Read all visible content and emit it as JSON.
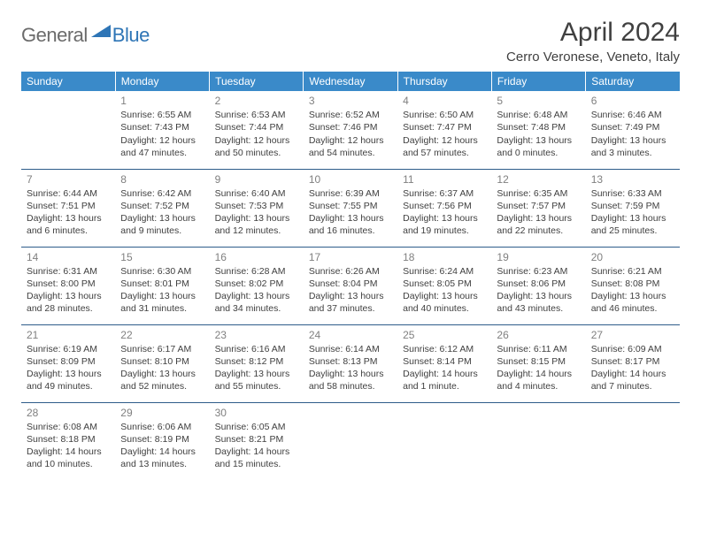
{
  "logo": {
    "general": "General",
    "blue": "Blue"
  },
  "title": "April 2024",
  "location": "Cerro Veronese, Veneto, Italy",
  "colors": {
    "header_bg": "#3a8ac9",
    "header_fg": "#ffffff",
    "border": "#2e5c8a",
    "text": "#404040",
    "daynum": "#808080",
    "logo_gray": "#6b6b6b",
    "logo_blue": "#2e75b6"
  },
  "weekdays": [
    "Sunday",
    "Monday",
    "Tuesday",
    "Wednesday",
    "Thursday",
    "Friday",
    "Saturday"
  ],
  "weeks": [
    [
      {
        "day": "",
        "sunrise": "",
        "sunset": "",
        "daylight1": "",
        "daylight2": ""
      },
      {
        "day": "1",
        "sunrise": "Sunrise: 6:55 AM",
        "sunset": "Sunset: 7:43 PM",
        "daylight1": "Daylight: 12 hours",
        "daylight2": "and 47 minutes."
      },
      {
        "day": "2",
        "sunrise": "Sunrise: 6:53 AM",
        "sunset": "Sunset: 7:44 PM",
        "daylight1": "Daylight: 12 hours",
        "daylight2": "and 50 minutes."
      },
      {
        "day": "3",
        "sunrise": "Sunrise: 6:52 AM",
        "sunset": "Sunset: 7:46 PM",
        "daylight1": "Daylight: 12 hours",
        "daylight2": "and 54 minutes."
      },
      {
        "day": "4",
        "sunrise": "Sunrise: 6:50 AM",
        "sunset": "Sunset: 7:47 PM",
        "daylight1": "Daylight: 12 hours",
        "daylight2": "and 57 minutes."
      },
      {
        "day": "5",
        "sunrise": "Sunrise: 6:48 AM",
        "sunset": "Sunset: 7:48 PM",
        "daylight1": "Daylight: 13 hours",
        "daylight2": "and 0 minutes."
      },
      {
        "day": "6",
        "sunrise": "Sunrise: 6:46 AM",
        "sunset": "Sunset: 7:49 PM",
        "daylight1": "Daylight: 13 hours",
        "daylight2": "and 3 minutes."
      }
    ],
    [
      {
        "day": "7",
        "sunrise": "Sunrise: 6:44 AM",
        "sunset": "Sunset: 7:51 PM",
        "daylight1": "Daylight: 13 hours",
        "daylight2": "and 6 minutes."
      },
      {
        "day": "8",
        "sunrise": "Sunrise: 6:42 AM",
        "sunset": "Sunset: 7:52 PM",
        "daylight1": "Daylight: 13 hours",
        "daylight2": "and 9 minutes."
      },
      {
        "day": "9",
        "sunrise": "Sunrise: 6:40 AM",
        "sunset": "Sunset: 7:53 PM",
        "daylight1": "Daylight: 13 hours",
        "daylight2": "and 12 minutes."
      },
      {
        "day": "10",
        "sunrise": "Sunrise: 6:39 AM",
        "sunset": "Sunset: 7:55 PM",
        "daylight1": "Daylight: 13 hours",
        "daylight2": "and 16 minutes."
      },
      {
        "day": "11",
        "sunrise": "Sunrise: 6:37 AM",
        "sunset": "Sunset: 7:56 PM",
        "daylight1": "Daylight: 13 hours",
        "daylight2": "and 19 minutes."
      },
      {
        "day": "12",
        "sunrise": "Sunrise: 6:35 AM",
        "sunset": "Sunset: 7:57 PM",
        "daylight1": "Daylight: 13 hours",
        "daylight2": "and 22 minutes."
      },
      {
        "day": "13",
        "sunrise": "Sunrise: 6:33 AM",
        "sunset": "Sunset: 7:59 PM",
        "daylight1": "Daylight: 13 hours",
        "daylight2": "and 25 minutes."
      }
    ],
    [
      {
        "day": "14",
        "sunrise": "Sunrise: 6:31 AM",
        "sunset": "Sunset: 8:00 PM",
        "daylight1": "Daylight: 13 hours",
        "daylight2": "and 28 minutes."
      },
      {
        "day": "15",
        "sunrise": "Sunrise: 6:30 AM",
        "sunset": "Sunset: 8:01 PM",
        "daylight1": "Daylight: 13 hours",
        "daylight2": "and 31 minutes."
      },
      {
        "day": "16",
        "sunrise": "Sunrise: 6:28 AM",
        "sunset": "Sunset: 8:02 PM",
        "daylight1": "Daylight: 13 hours",
        "daylight2": "and 34 minutes."
      },
      {
        "day": "17",
        "sunrise": "Sunrise: 6:26 AM",
        "sunset": "Sunset: 8:04 PM",
        "daylight1": "Daylight: 13 hours",
        "daylight2": "and 37 minutes."
      },
      {
        "day": "18",
        "sunrise": "Sunrise: 6:24 AM",
        "sunset": "Sunset: 8:05 PM",
        "daylight1": "Daylight: 13 hours",
        "daylight2": "and 40 minutes."
      },
      {
        "day": "19",
        "sunrise": "Sunrise: 6:23 AM",
        "sunset": "Sunset: 8:06 PM",
        "daylight1": "Daylight: 13 hours",
        "daylight2": "and 43 minutes."
      },
      {
        "day": "20",
        "sunrise": "Sunrise: 6:21 AM",
        "sunset": "Sunset: 8:08 PM",
        "daylight1": "Daylight: 13 hours",
        "daylight2": "and 46 minutes."
      }
    ],
    [
      {
        "day": "21",
        "sunrise": "Sunrise: 6:19 AM",
        "sunset": "Sunset: 8:09 PM",
        "daylight1": "Daylight: 13 hours",
        "daylight2": "and 49 minutes."
      },
      {
        "day": "22",
        "sunrise": "Sunrise: 6:17 AM",
        "sunset": "Sunset: 8:10 PM",
        "daylight1": "Daylight: 13 hours",
        "daylight2": "and 52 minutes."
      },
      {
        "day": "23",
        "sunrise": "Sunrise: 6:16 AM",
        "sunset": "Sunset: 8:12 PM",
        "daylight1": "Daylight: 13 hours",
        "daylight2": "and 55 minutes."
      },
      {
        "day": "24",
        "sunrise": "Sunrise: 6:14 AM",
        "sunset": "Sunset: 8:13 PM",
        "daylight1": "Daylight: 13 hours",
        "daylight2": "and 58 minutes."
      },
      {
        "day": "25",
        "sunrise": "Sunrise: 6:12 AM",
        "sunset": "Sunset: 8:14 PM",
        "daylight1": "Daylight: 14 hours",
        "daylight2": "and 1 minute."
      },
      {
        "day": "26",
        "sunrise": "Sunrise: 6:11 AM",
        "sunset": "Sunset: 8:15 PM",
        "daylight1": "Daylight: 14 hours",
        "daylight2": "and 4 minutes."
      },
      {
        "day": "27",
        "sunrise": "Sunrise: 6:09 AM",
        "sunset": "Sunset: 8:17 PM",
        "daylight1": "Daylight: 14 hours",
        "daylight2": "and 7 minutes."
      }
    ],
    [
      {
        "day": "28",
        "sunrise": "Sunrise: 6:08 AM",
        "sunset": "Sunset: 8:18 PM",
        "daylight1": "Daylight: 14 hours",
        "daylight2": "and 10 minutes."
      },
      {
        "day": "29",
        "sunrise": "Sunrise: 6:06 AM",
        "sunset": "Sunset: 8:19 PM",
        "daylight1": "Daylight: 14 hours",
        "daylight2": "and 13 minutes."
      },
      {
        "day": "30",
        "sunrise": "Sunrise: 6:05 AM",
        "sunset": "Sunset: 8:21 PM",
        "daylight1": "Daylight: 14 hours",
        "daylight2": "and 15 minutes."
      },
      {
        "day": "",
        "sunrise": "",
        "sunset": "",
        "daylight1": "",
        "daylight2": ""
      },
      {
        "day": "",
        "sunrise": "",
        "sunset": "",
        "daylight1": "",
        "daylight2": ""
      },
      {
        "day": "",
        "sunrise": "",
        "sunset": "",
        "daylight1": "",
        "daylight2": ""
      },
      {
        "day": "",
        "sunrise": "",
        "sunset": "",
        "daylight1": "",
        "daylight2": ""
      }
    ]
  ]
}
